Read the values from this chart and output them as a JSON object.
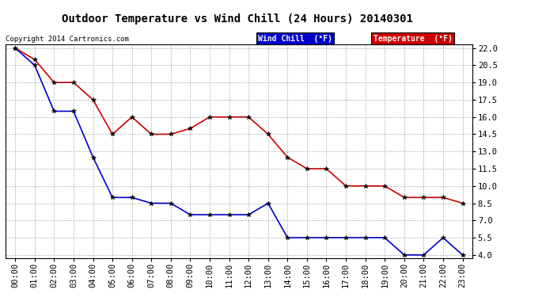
{
  "title": "Outdoor Temperature vs Wind Chill (24 Hours) 20140301",
  "copyright": "Copyright 2014 Cartronics.com",
  "hours": [
    "00:00",
    "01:00",
    "02:00",
    "03:00",
    "04:00",
    "05:00",
    "06:00",
    "07:00",
    "08:00",
    "09:00",
    "10:00",
    "11:00",
    "12:00",
    "13:00",
    "14:00",
    "15:00",
    "16:00",
    "17:00",
    "18:00",
    "19:00",
    "20:00",
    "21:00",
    "22:00",
    "23:00"
  ],
  "temperature": [
    22.0,
    21.0,
    19.0,
    19.0,
    17.5,
    14.5,
    16.0,
    14.5,
    14.5,
    15.0,
    16.0,
    16.0,
    16.0,
    14.5,
    12.5,
    11.5,
    11.5,
    10.0,
    10.0,
    10.0,
    9.0,
    9.0,
    9.0,
    8.5
  ],
  "wind_chill": [
    22.0,
    20.5,
    16.5,
    16.5,
    12.5,
    9.0,
    9.0,
    8.5,
    8.5,
    7.5,
    7.5,
    7.5,
    7.5,
    8.5,
    5.5,
    5.5,
    5.5,
    5.5,
    5.5,
    5.5,
    4.0,
    4.0,
    5.5,
    4.0
  ],
  "temp_color": "#cc0000",
  "wind_chill_color": "#0000cc",
  "bg_color": "#ffffff",
  "plot_bg_color": "#ffffff",
  "grid_color": "#b0b0b0",
  "ylim_min": 3.7,
  "ylim_max": 22.3,
  "yticks": [
    4.0,
    5.5,
    7.0,
    8.5,
    10.0,
    11.5,
    13.0,
    14.5,
    16.0,
    17.5,
    19.0,
    20.5,
    22.0
  ],
  "legend_wind_chill_bg": "#0000cc",
  "legend_temp_bg": "#cc0000",
  "legend_text_color": "#ffffff",
  "title_fontsize": 10,
  "tick_fontsize": 7.5,
  "copyright_fontsize": 6.5
}
